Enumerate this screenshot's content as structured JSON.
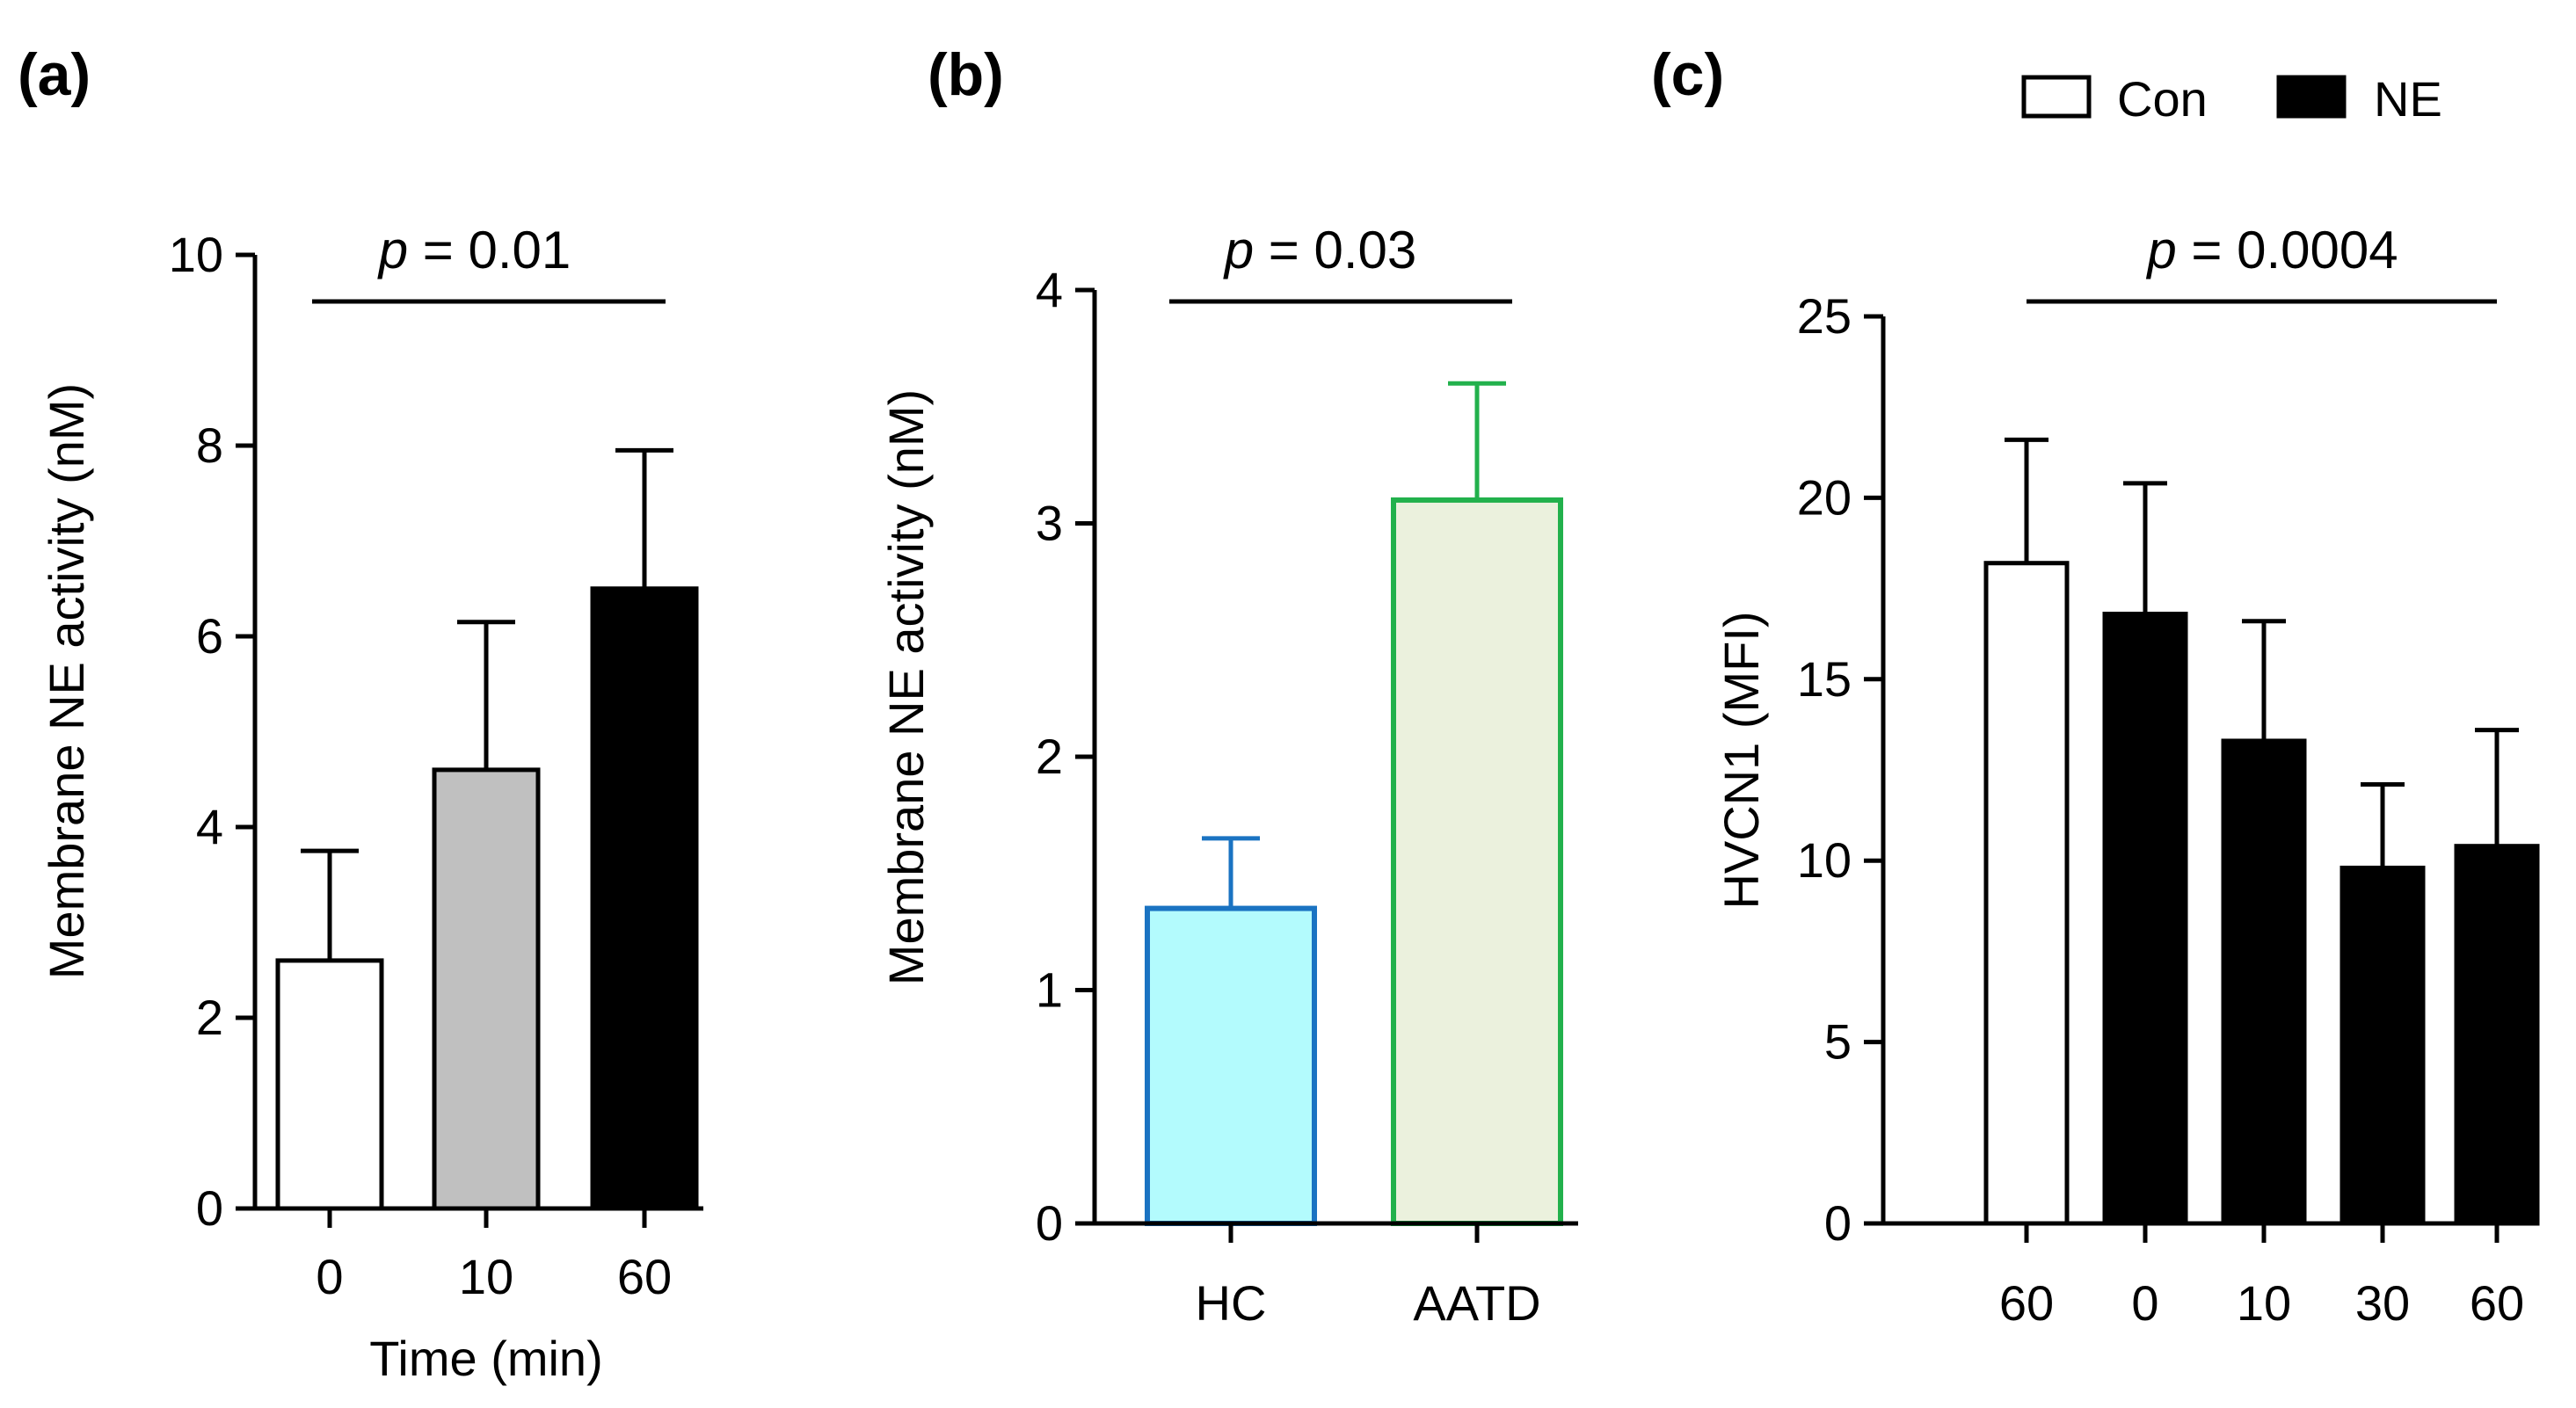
{
  "chart_data": [
    {
      "panel": "(a)",
      "type": "bar",
      "categories": [
        "0",
        "10",
        "60"
      ],
      "values": [
        2.6,
        4.6,
        6.5
      ],
      "errors": [
        1.15,
        1.55,
        1.45
      ],
      "fills": [
        "#ffffff",
        "#c0c0c0",
        "#000000"
      ],
      "strokes": [
        "#000000",
        "#000000",
        "#000000"
      ],
      "xlabel": "Time (min)",
      "ylabel": "Membrane NE activity (nM)",
      "ylim": [
        0,
        10
      ],
      "yticks": [
        "0",
        "2",
        "4",
        "6",
        "8",
        "10"
      ],
      "annotation": {
        "p_italic": "p",
        "p_rest": " = 0.01",
        "from": 0,
        "to": 2
      }
    },
    {
      "panel": "(b)",
      "type": "bar",
      "categories": [
        "HC",
        "AATD"
      ],
      "values": [
        1.35,
        3.1
      ],
      "errors": [
        0.3,
        0.5
      ],
      "fills": [
        "#b3fbfd",
        "#ebf1dd"
      ],
      "strokes": [
        "#1a73c2",
        "#22b14c"
      ],
      "xlabel": "",
      "ylabel": "Membrane NE activity (nM)",
      "ylim": [
        0,
        4
      ],
      "yticks": [
        "0",
        "1",
        "2",
        "3",
        "4"
      ],
      "annotation": {
        "p_italic": "p",
        "p_rest": " = 0.03",
        "from": 0,
        "to": 1
      }
    },
    {
      "panel": "(c)",
      "type": "bar",
      "categories": [
        "60",
        "0",
        "10",
        "30",
        "60"
      ],
      "values": [
        18.2,
        16.8,
        13.3,
        9.8,
        10.4
      ],
      "errors": [
        3.4,
        3.6,
        3.3,
        2.3,
        3.2
      ],
      "fills": [
        "#ffffff",
        "#000000",
        "#000000",
        "#000000",
        "#000000"
      ],
      "strokes": [
        "#000000",
        "#000000",
        "#000000",
        "#000000",
        "#000000"
      ],
      "xlabel": "",
      "ylabel": "HVCN1 (MFI)",
      "ylim": [
        0,
        25
      ],
      "yticks": [
        "0",
        "5",
        "10",
        "15",
        "20",
        "25"
      ],
      "annotation": {
        "p_italic": "p",
        "p_rest": " = 0.0004",
        "from": 0,
        "to": 4
      },
      "legend": {
        "position": "top-right",
        "items": [
          {
            "label": "Con",
            "fill": "#ffffff"
          },
          {
            "label": "NE",
            "fill": "#000000"
          }
        ]
      }
    }
  ]
}
